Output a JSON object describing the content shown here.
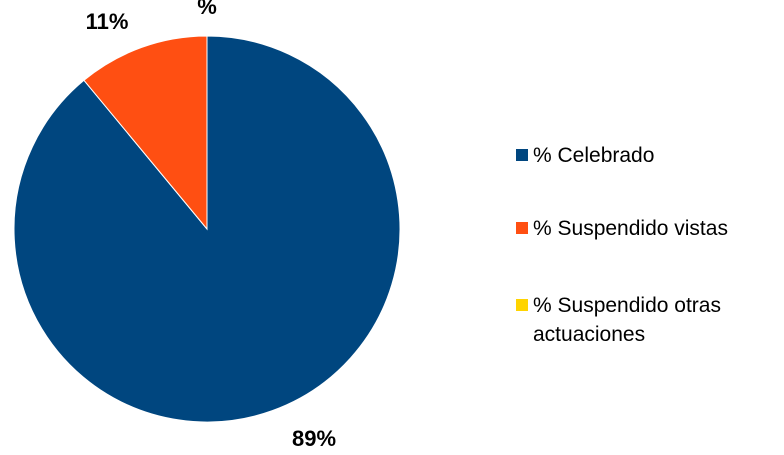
{
  "chart_data": {
    "type": "pie",
    "categories": [
      "% Celebrado",
      "% Suspendido vistas",
      "% Suspendido otras actuaciones"
    ],
    "values": [
      89,
      11,
      0
    ],
    "data_labels": [
      "89%",
      "11%",
      "%"
    ],
    "colors": [
      "#00467F",
      "#FF4F12",
      "#FFD400"
    ],
    "legend": {
      "position": "right",
      "entries": [
        {
          "label_lines": [
            "% Celebrado"
          ]
        },
        {
          "label_lines": [
            "% Suspendido vistas"
          ]
        },
        {
          "label_lines": [
            "% Suspendido otras",
            "actuaciones"
          ]
        }
      ]
    }
  }
}
